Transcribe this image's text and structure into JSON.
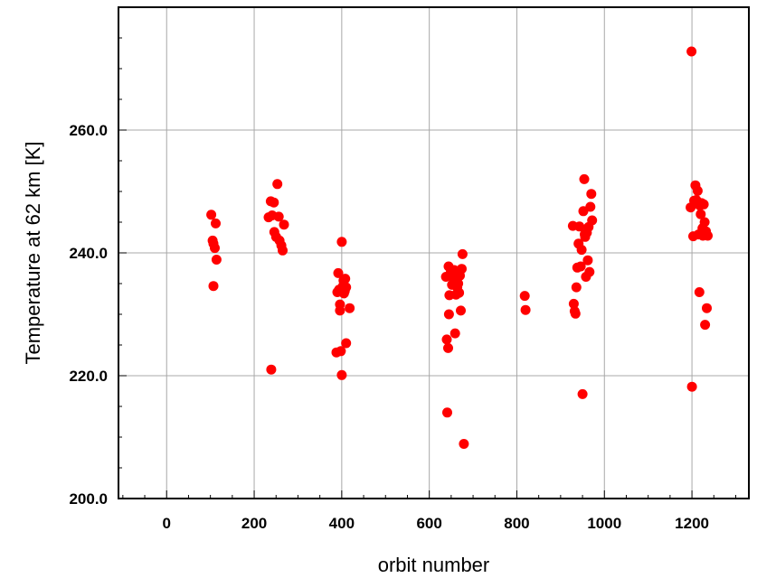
{
  "chart_data": {
    "type": "scatter",
    "title": "",
    "xlabel": "orbit number",
    "ylabel": "Temperature at 62 km [K]",
    "xlim": [
      -110,
      1330
    ],
    "ylim": [
      200,
      280
    ],
    "x_ticks": [
      0,
      200,
      400,
      600,
      800,
      1000,
      1200
    ],
    "x_tick_labels": [
      "0",
      "200",
      "400",
      "600",
      "800",
      "1000",
      "1200"
    ],
    "y_ticks": [
      200,
      220,
      240,
      260
    ],
    "y_tick_labels": [
      "200.0",
      "220.0",
      "240.0",
      "260.0"
    ],
    "x_minor_step": 50,
    "y_minor_step": 5,
    "grid": true,
    "legend": "none",
    "marker_color": "#ff0000",
    "series": [
      {
        "points": [
          [
            102,
            246.2
          ],
          [
            105,
            242.0
          ],
          [
            107,
            241.5
          ],
          [
            110,
            240.8
          ],
          [
            112,
            244.8
          ],
          [
            114,
            238.9
          ],
          [
            107,
            234.6
          ],
          [
            233,
            245.8
          ],
          [
            238,
            248.4
          ],
          [
            241,
            246.1
          ],
          [
            245,
            248.2
          ],
          [
            246,
            243.4
          ],
          [
            250,
            242.6
          ],
          [
            253,
            251.2
          ],
          [
            256,
            245.9
          ],
          [
            258,
            242.0
          ],
          [
            262,
            241.2
          ],
          [
            265,
            240.4
          ],
          [
            268,
            244.6
          ],
          [
            239,
            221.0
          ],
          [
            388,
            223.8
          ],
          [
            390,
            233.6
          ],
          [
            392,
            236.7
          ],
          [
            394,
            234.0
          ],
          [
            396,
            230.6
          ],
          [
            396,
            231.6
          ],
          [
            398,
            224.0
          ],
          [
            400,
            241.8
          ],
          [
            400,
            220.1
          ],
          [
            403,
            234.6
          ],
          [
            404,
            235.5
          ],
          [
            405,
            233.4
          ],
          [
            407,
            233.8
          ],
          [
            408,
            235.8
          ],
          [
            410,
            234.4
          ],
          [
            410,
            225.3
          ],
          [
            418,
            231.0
          ],
          [
            638,
            236.1
          ],
          [
            640,
            225.9
          ],
          [
            641,
            214.0
          ],
          [
            643,
            224.5
          ],
          [
            644,
            237.8
          ],
          [
            645,
            230.0
          ],
          [
            646,
            233.1
          ],
          [
            649,
            236.8
          ],
          [
            652,
            234.8
          ],
          [
            655,
            235.9
          ],
          [
            657,
            237.2
          ],
          [
            659,
            226.9
          ],
          [
            661,
            233.2
          ],
          [
            664,
            234.4
          ],
          [
            666,
            235.0
          ],
          [
            668,
            233.5
          ],
          [
            670,
            236.3
          ],
          [
            672,
            230.6
          ],
          [
            674,
            237.4
          ],
          [
            676,
            239.8
          ],
          [
            679,
            208.9
          ],
          [
            818,
            233.0
          ],
          [
            820,
            230.7
          ],
          [
            928,
            244.4
          ],
          [
            930,
            231.7
          ],
          [
            932,
            230.5
          ],
          [
            934,
            230.1
          ],
          [
            936,
            234.4
          ],
          [
            938,
            237.6
          ],
          [
            941,
            241.5
          ],
          [
            943,
            244.3
          ],
          [
            946,
            237.8
          ],
          [
            948,
            240.5
          ],
          [
            950,
            217.0
          ],
          [
            952,
            246.8
          ],
          [
            954,
            252.0
          ],
          [
            955,
            243.0
          ],
          [
            956,
            242.6
          ],
          [
            958,
            236.1
          ],
          [
            960,
            243.3
          ],
          [
            962,
            238.8
          ],
          [
            964,
            244.2
          ],
          [
            966,
            236.9
          ],
          [
            968,
            247.5
          ],
          [
            970,
            249.6
          ],
          [
            972,
            245.3
          ],
          [
            1197,
            247.4
          ],
          [
            1199,
            272.8
          ],
          [
            1200,
            218.2
          ],
          [
            1203,
            242.7
          ],
          [
            1205,
            248.5
          ],
          [
            1208,
            251.0
          ],
          [
            1210,
            248.6
          ],
          [
            1213,
            250.1
          ],
          [
            1215,
            243.0
          ],
          [
            1217,
            233.6
          ],
          [
            1218,
            247.7
          ],
          [
            1220,
            246.3
          ],
          [
            1222,
            248.1
          ],
          [
            1224,
            244.0
          ],
          [
            1225,
            242.8
          ],
          [
            1227,
            247.9
          ],
          [
            1229,
            245.0
          ],
          [
            1230,
            228.3
          ],
          [
            1232,
            243.5
          ],
          [
            1234,
            231.0
          ],
          [
            1236,
            242.8
          ]
        ]
      }
    ]
  }
}
